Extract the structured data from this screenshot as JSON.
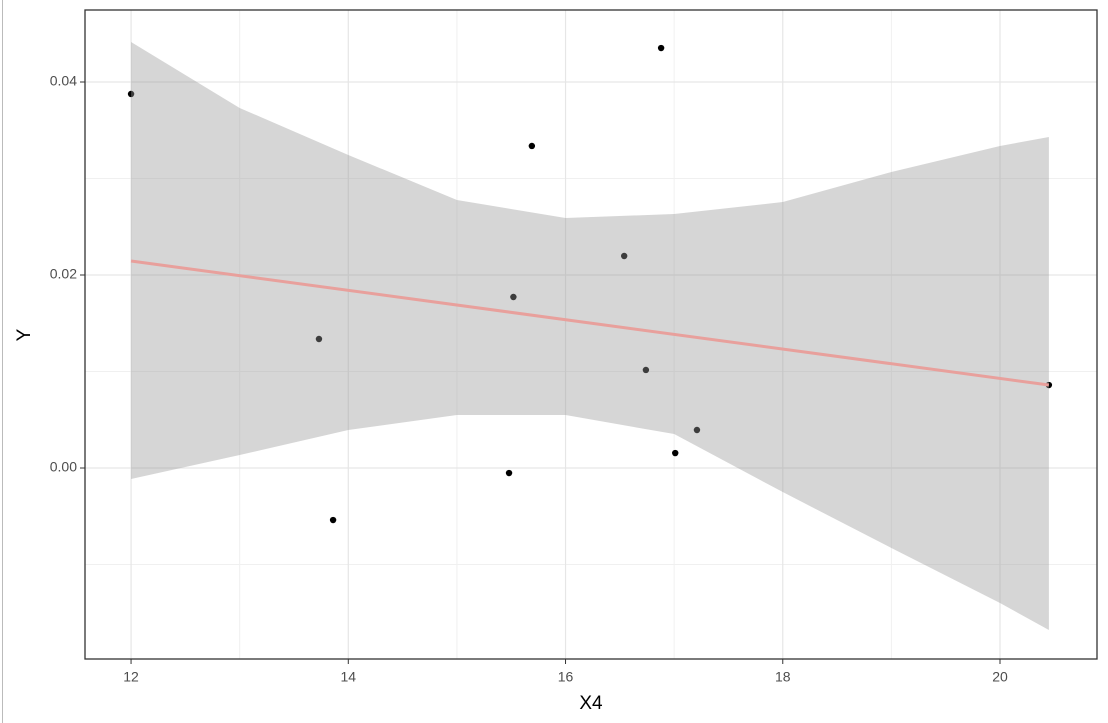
{
  "chart_data": {
    "type": "scatter",
    "x_label": "X4",
    "y_label": "Y",
    "x": [
      12.0,
      13.73,
      13.86,
      15.48,
      15.52,
      15.69,
      16.54,
      16.74,
      16.88,
      17.01,
      17.21,
      20.45
    ],
    "y": [
      0.03876,
      0.01337,
      -0.00539,
      -0.00052,
      0.01772,
      0.03337,
      0.02197,
      0.01016,
      0.04352,
      0.00155,
      0.00394,
      0.0086
    ],
    "color": "#000000",
    "fit": {
      "x": [
        12.0,
        20.45
      ],
      "y": [
        0.02145,
        0.0086
      ],
      "color": "#e8a09c"
    },
    "band": {
      "x": [
        12,
        13,
        14,
        15,
        16,
        17,
        18,
        19,
        20,
        20.45
      ],
      "ymax": [
        0.04415,
        0.03731,
        0.03244,
        0.02777,
        0.02591,
        0.02632,
        0.02756,
        0.03067,
        0.03337,
        0.0343
      ],
      "ymin": [
        -0.00114,
        0.00135,
        0.00394,
        0.00549,
        0.00549,
        0.00352,
        -0.00249,
        -0.00829,
        -0.01399,
        -0.01679
      ],
      "color": "#999999"
    },
    "xlim": [
      11.576,
      20.893
    ],
    "ylim": [
      -0.01979,
      0.04746
    ],
    "xticks": [
      12,
      14,
      16,
      18,
      20
    ],
    "yticks": [
      {
        "value": 0,
        "label": "0.00"
      },
      0.02,
      0.04
    ],
    "minor_xticks": [
      13,
      15,
      17,
      19
    ],
    "minor_yticks": [
      -0.01,
      0.01,
      0.03
    ],
    "grid": true
  }
}
